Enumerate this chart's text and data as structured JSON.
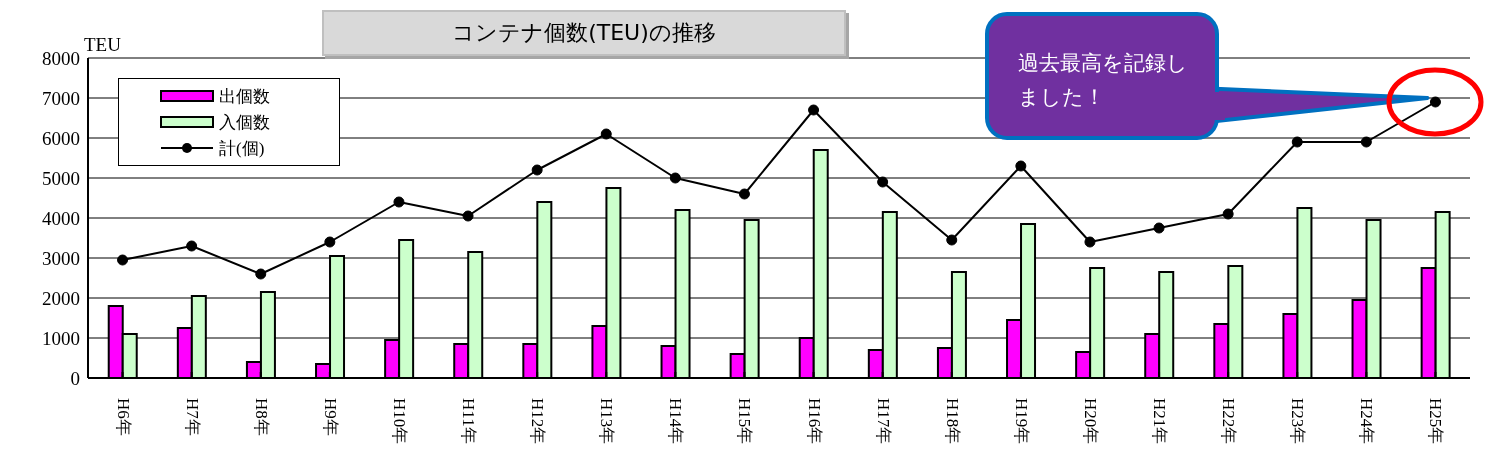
{
  "chart_data": {
    "type": "bar",
    "title": "コンテナ個数(TEU)の推移",
    "ylabel": "TEU",
    "categories": [
      "H6年",
      "H7年",
      "H8年",
      "H9年",
      "H10年",
      "H11年",
      "H12年",
      "H13年",
      "H14年",
      "H15年",
      "H16年",
      "H17年",
      "H18年",
      "H19年",
      "H20年",
      "H21年",
      "H22年",
      "H23年",
      "H24年",
      "H25年"
    ],
    "series": [
      {
        "name": "出個数",
        "color": "#ff00ff",
        "values": [
          1800,
          1250,
          400,
          350,
          950,
          850,
          850,
          1300,
          800,
          600,
          1000,
          700,
          750,
          1450,
          650,
          1100,
          1350,
          1600,
          1950,
          2750
        ]
      },
      {
        "name": "入個数",
        "color": "#ccffcc",
        "values": [
          1100,
          2050,
          2150,
          3050,
          3450,
          3150,
          4400,
          4750,
          4200,
          3950,
          5700,
          4150,
          2650,
          3850,
          2750,
          2650,
          2800,
          4250,
          3950,
          4150
        ]
      },
      {
        "name": "計(個)",
        "type": "line",
        "color": "#000000",
        "marker": "circle",
        "values": [
          2950,
          3300,
          2600,
          3400,
          4400,
          4050,
          5200,
          6100,
          5000,
          4600,
          6700,
          4900,
          3450,
          5300,
          3400,
          3750,
          4100,
          5900,
          5900,
          6900
        ]
      }
    ],
    "ylim": [
      0,
      8000
    ],
    "yticks": [
      0,
      1000,
      2000,
      3000,
      4000,
      5000,
      6000,
      7000,
      8000
    ],
    "grid": "y",
    "legend": "top left",
    "annotations": [
      "過去最高を記録しました！"
    ]
  }
}
